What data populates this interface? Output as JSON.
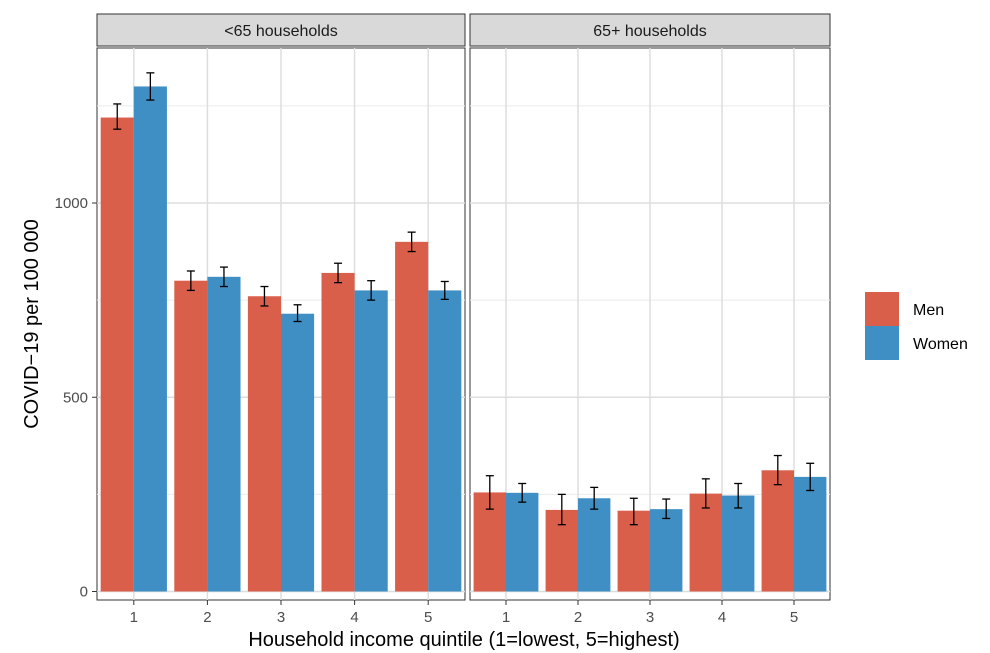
{
  "chart_data": {
    "type": "bar",
    "xlabel": "Household income quintile (1=lowest, 5=highest)",
    "ylabel": "COVID−19 per 100 000",
    "ylim": [
      0,
      1300
    ],
    "yticks": [
      0,
      500,
      1000
    ],
    "categories": [
      "1",
      "2",
      "3",
      "4",
      "5"
    ],
    "grid": true,
    "legend_position": "right",
    "series_colors": {
      "Men": "#d95f4b",
      "Women": "#3f8fc4"
    },
    "legend": [
      "Men",
      "Women"
    ],
    "panels": [
      {
        "title": "<65 households",
        "series": [
          {
            "name": "Men",
            "values": [
              1220,
              800,
              760,
              820,
              900
            ],
            "err_low": [
              1190,
              775,
              735,
              795,
              875
            ],
            "err_high": [
              1255,
              825,
              785,
              845,
              925
            ]
          },
          {
            "name": "Women",
            "values": [
              1300,
              810,
              715,
              775,
              775
            ],
            "err_low": [
              1265,
              785,
              695,
              750,
              752
            ],
            "err_high": [
              1335,
              835,
              738,
              800,
              798
            ]
          }
        ]
      },
      {
        "title": "65+ households",
        "series": [
          {
            "name": "Men",
            "values": [
              255,
              210,
              208,
              252,
              312
            ],
            "err_low": [
              212,
              172,
              172,
              215,
              275
            ],
            "err_high": [
              298,
              250,
              240,
              290,
              350
            ]
          },
          {
            "name": "Women",
            "values": [
              254,
              240,
              212,
              247,
              295
            ],
            "err_low": [
              230,
              212,
              188,
              215,
              260
            ],
            "err_high": [
              278,
              268,
              238,
              278,
              330
            ]
          }
        ]
      }
    ]
  }
}
